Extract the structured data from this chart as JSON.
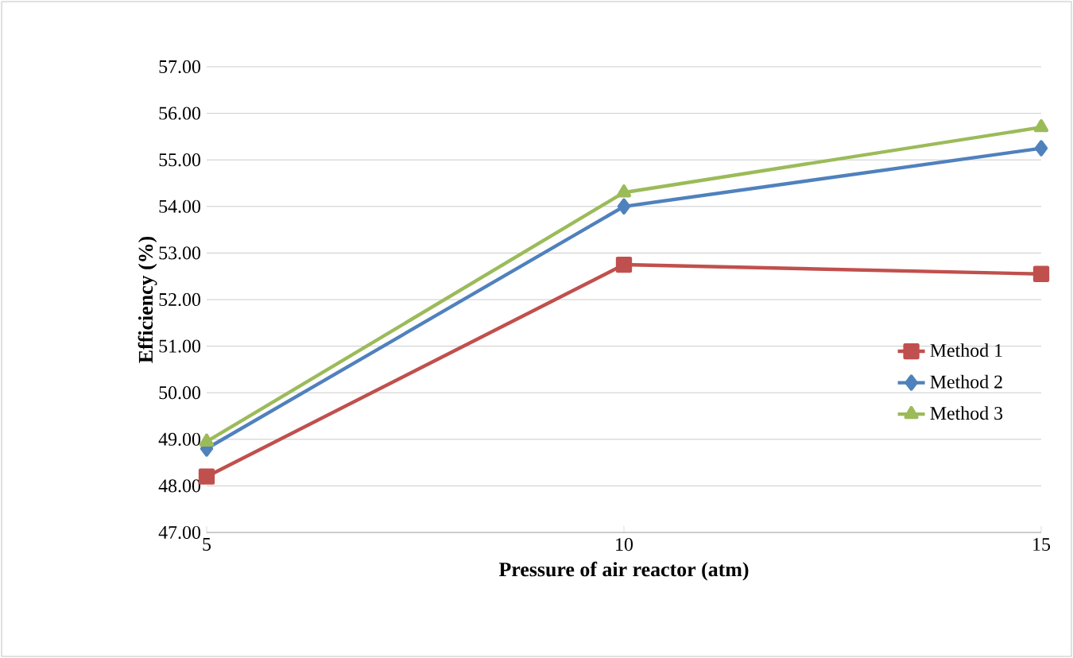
{
  "chart_data": {
    "type": "line",
    "xlabel": "Pressure of air reactor (atm)",
    "ylabel": "Efficiency (%)",
    "x": [
      5,
      10,
      15
    ],
    "series": [
      {
        "name": "Method 1",
        "color": "#c0504d",
        "marker": "square",
        "values": [
          48.2,
          52.75,
          52.55
        ]
      },
      {
        "name": "Method 2",
        "color": "#4f81bd",
        "marker": "diamond",
        "values": [
          48.8,
          54.0,
          55.25
        ]
      },
      {
        "name": "Method 3",
        "color": "#9bbb59",
        "marker": "triangle",
        "values": [
          48.95,
          54.3,
          55.7
        ]
      }
    ],
    "xlim": [
      5,
      15
    ],
    "xticks": [
      5,
      10,
      15
    ],
    "ylim": [
      47,
      57
    ],
    "yticks": [
      {
        "value": 47,
        "label": "47.00"
      },
      {
        "value": 48,
        "label": "48.00"
      },
      {
        "value": 49,
        "label": "49.00"
      },
      {
        "value": 50,
        "label": "50.00"
      },
      {
        "value": 51,
        "label": "51.00"
      },
      {
        "value": 52,
        "label": "52.00"
      },
      {
        "value": 53,
        "label": "53.00"
      },
      {
        "value": 54,
        "label": "54.00"
      },
      {
        "value": 55,
        "label": "55.00"
      },
      {
        "value": 56,
        "label": "56.00"
      },
      {
        "value": 57,
        "label": "57.00"
      }
    ],
    "grid": "y",
    "legend": "right"
  }
}
